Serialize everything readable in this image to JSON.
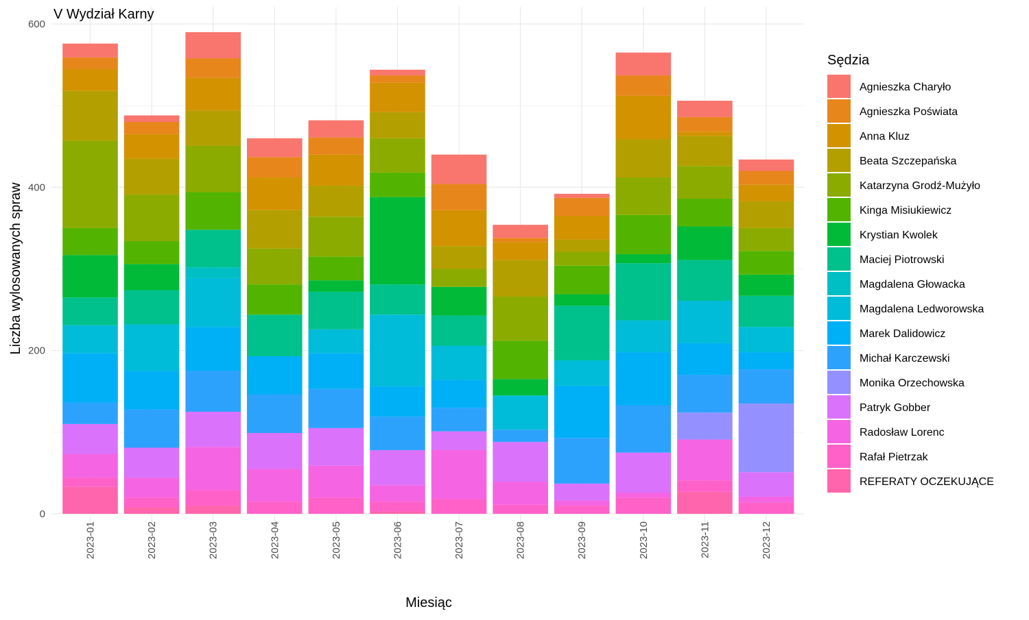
{
  "chart_data": {
    "type": "bar",
    "stacked": true,
    "title": "V Wydział Karny",
    "xlabel": "Miesiąc",
    "ylabel": "Liczba wylosowanych spraw",
    "legend_title": "Sędzia",
    "legend_position": "right",
    "ylim": [
      0,
      600
    ],
    "yticks": [
      0,
      200,
      400,
      600
    ],
    "grid": true,
    "categories": [
      "2023-01",
      "2023-02",
      "2023-03",
      "2023-04",
      "2023-05",
      "2023-06",
      "2023-07",
      "2023-08",
      "2023-09",
      "2023-10",
      "2023-11",
      "2023-12"
    ],
    "series": [
      {
        "name": "REFERATY OCZEKUJĄCE",
        "color": "#FF65AC",
        "values": [
          33,
          8,
          10,
          0,
          0,
          3,
          0,
          0,
          0,
          0,
          27,
          0
        ]
      },
      {
        "name": "Rafał Pietrzak",
        "color": "#FF61C9",
        "values": [
          11,
          12,
          19,
          15,
          20,
          12,
          18,
          11,
          10,
          20,
          14,
          14
        ]
      },
      {
        "name": "Radosław Lorenc",
        "color": "#F564E3",
        "values": [
          29,
          24,
          53,
          40,
          39,
          20,
          60,
          28,
          6,
          6,
          50,
          7
        ]
      },
      {
        "name": "Patryk Gobber",
        "color": "#DB72FB",
        "values": [
          37,
          37,
          43,
          44,
          46,
          43,
          23,
          49,
          21,
          49,
          0,
          30
        ]
      },
      {
        "name": "Monika Orzechowska",
        "color": "#9590FF",
        "values": [
          0,
          0,
          0,
          0,
          0,
          0,
          0,
          0,
          0,
          0,
          33,
          84
        ]
      },
      {
        "name": "Michał Karczewski",
        "color": "#2DA2FD",
        "values": [
          26,
          47,
          50,
          47,
          48,
          41,
          29,
          15,
          56,
          58,
          46,
          42
        ]
      },
      {
        "name": "Marek Dalidowicz",
        "color": "#00B0F6",
        "values": [
          61,
          47,
          54,
          47,
          44,
          37,
          34,
          0,
          64,
          65,
          39,
          21
        ]
      },
      {
        "name": "Magdalena Ledworowska",
        "color": "#00BCD8",
        "values": [
          34,
          57,
          60,
          0,
          29,
          88,
          42,
          42,
          31,
          39,
          52,
          31
        ]
      },
      {
        "name": "Magdalena Głowacka",
        "color": "#00BFC4",
        "values": [
          0,
          0,
          13,
          0,
          0,
          0,
          0,
          0,
          0,
          0,
          0,
          0
        ]
      },
      {
        "name": "Maciej Piotrowski",
        "color": "#00C08B",
        "values": [
          34,
          42,
          46,
          51,
          46,
          37,
          37,
          0,
          67,
          70,
          50,
          38
        ]
      },
      {
        "name": "Krystian Kwolek",
        "color": "#00BA38",
        "values": [
          52,
          32,
          0,
          0,
          14,
          107,
          35,
          20,
          14,
          11,
          41,
          26
        ]
      },
      {
        "name": "Kinga Misiukiewicz",
        "color": "#53B400",
        "values": [
          33,
          28,
          46,
          37,
          29,
          30,
          0,
          47,
          35,
          48,
          34,
          29
        ]
      },
      {
        "name": "Katarzyna Grodź-Mużyło",
        "color": "#8CAB00",
        "values": [
          107,
          57,
          57,
          44,
          49,
          42,
          22,
          54,
          17,
          46,
          40,
          28
        ]
      },
      {
        "name": "Beata Szczepańska",
        "color": "#B49F00",
        "values": [
          61,
          44,
          43,
          47,
          38,
          32,
          28,
          45,
          15,
          47,
          37,
          33
        ]
      },
      {
        "name": "Anna Kluz",
        "color": "#D39200",
        "values": [
          27,
          30,
          40,
          40,
          38,
          36,
          44,
          22,
          29,
          53,
          5,
          20
        ]
      },
      {
        "name": "Agnieszka Poświata",
        "color": "#E7861B",
        "values": [
          14,
          15,
          24,
          25,
          21,
          9,
          32,
          5,
          22,
          25,
          18,
          17
        ]
      },
      {
        "name": "Agnieszka Charyło",
        "color": "#F8766D",
        "values": [
          17,
          8,
          32,
          23,
          21,
          7,
          36,
          16,
          5,
          28,
          20,
          14
        ]
      }
    ],
    "legend_order": [
      "Agnieszka Charyło",
      "Agnieszka Poświata",
      "Anna Kluz",
      "Beata Szczepańska",
      "Katarzyna Grodź-Mużyło",
      "Kinga Misiukiewicz",
      "Krystian Kwolek",
      "Maciej Piotrowski",
      "Magdalena Głowacka",
      "Magdalena Ledworowska",
      "Marek Dalidowicz",
      "Michał Karczewski",
      "Monika Orzechowska",
      "Patryk Gobber",
      "Radosław Lorenc",
      "Rafał Pietrzak",
      "REFERATY OCZEKUJĄCE"
    ]
  }
}
